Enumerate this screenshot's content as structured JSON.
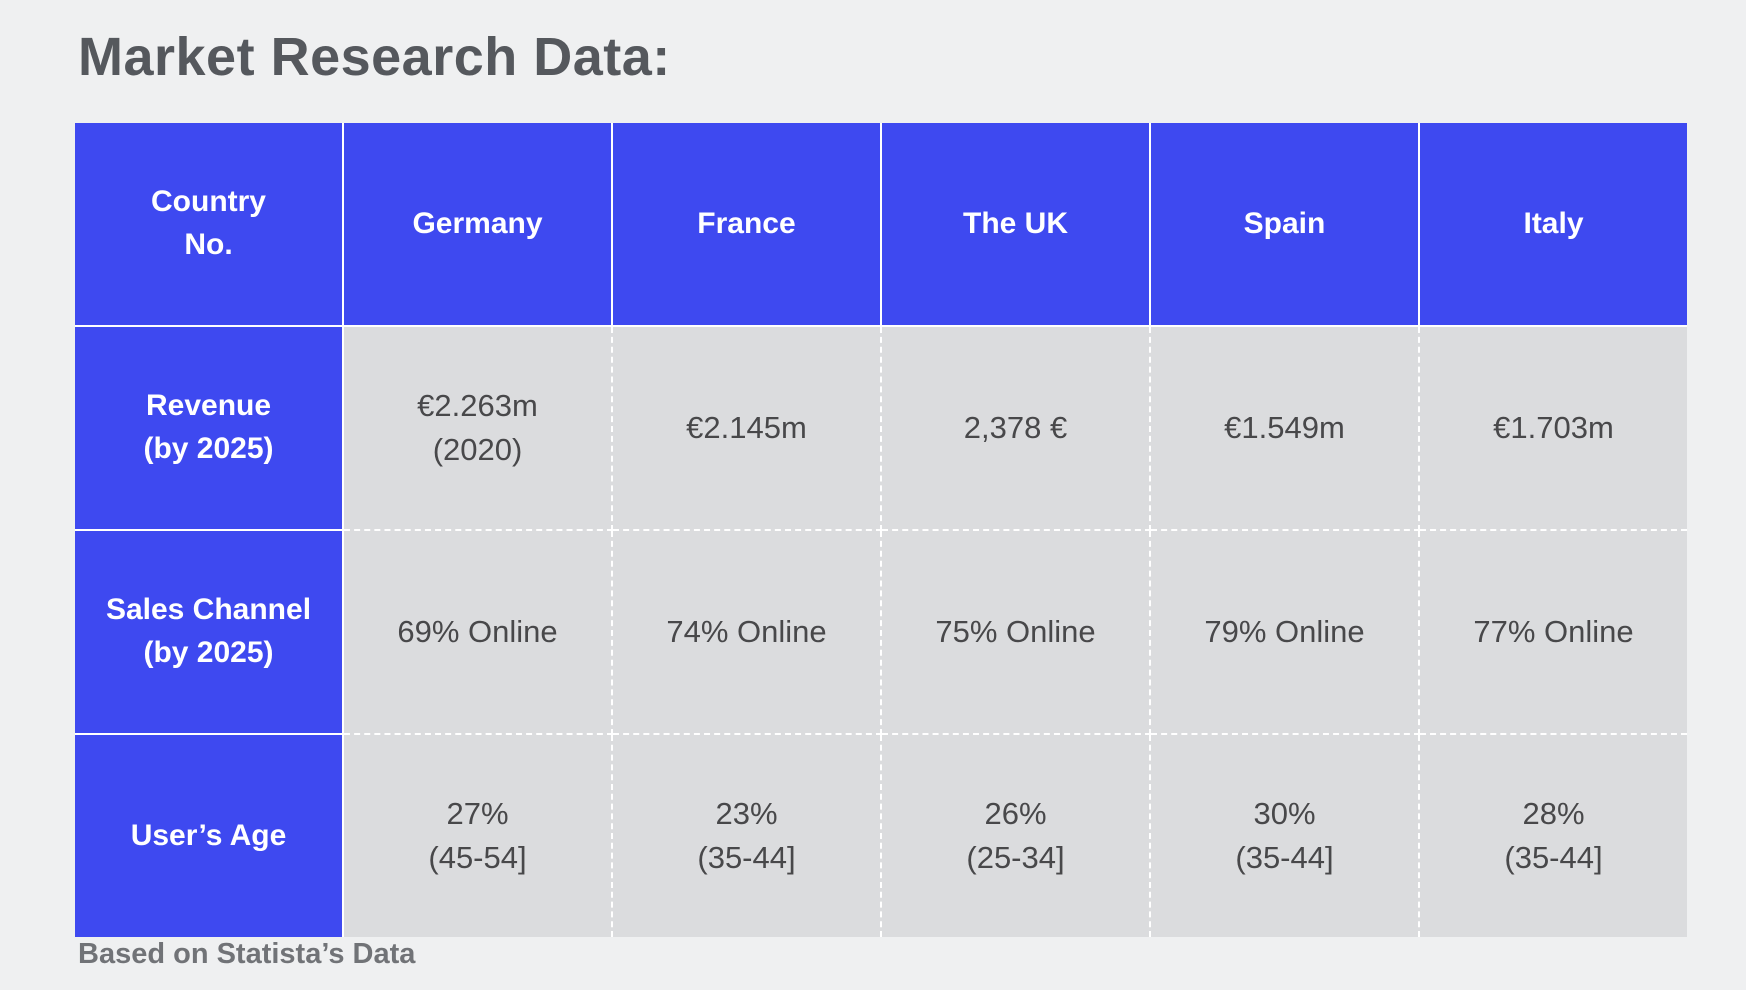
{
  "chart_data": {
    "type": "table",
    "title": "Market Research Data:",
    "corner_header": "Country\nNo.",
    "columns": [
      "Germany",
      "France",
      "The UK",
      "Spain",
      "Italy"
    ],
    "rows": [
      {
        "label": "Revenue\n(by 2025)",
        "values": [
          "€2.263m\n(2020)",
          "€2.145m",
          "2,378 €",
          "€1.549m",
          "€1.703m"
        ]
      },
      {
        "label": "Sales Channel\n(by 2025)",
        "values": [
          "69% Online",
          "74% Online",
          "75% Online",
          "79% Online",
          "77% Online"
        ]
      },
      {
        "label": "User’s Age",
        "values": [
          "27%\n(45-54]",
          "23%\n(35-44]",
          "26%\n(25-34]",
          "30%\n(35-44]",
          "28%\n(35-44]"
        ]
      }
    ],
    "source_note": "Based on Statista’s Data",
    "layout": "header row and first column highlighted, grid with white dividers"
  },
  "colors": {
    "accent_blue": "#3E49F0",
    "cell_gray": "#DBDCDE",
    "page_background": "#EFF0F1",
    "title_text": "#55585D",
    "data_text": "#48484A",
    "footer_text": "#717377",
    "divider": "#FFFFFF"
  }
}
